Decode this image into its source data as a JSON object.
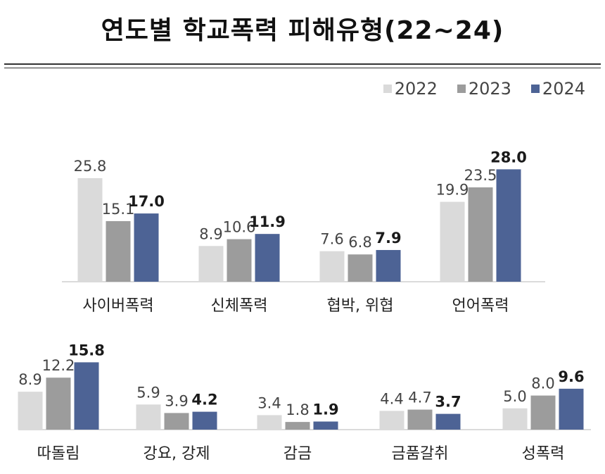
{
  "title": "연도별 학교폭력 피해유형(22~24)",
  "legend": [
    {
      "label": "2022",
      "color": "#dadada"
    },
    {
      "label": "2023",
      "color": "#9c9c9c"
    },
    {
      "label": "2024",
      "color": "#4d6395"
    }
  ],
  "chart_data": {
    "type": "bar",
    "title": "연도별 학교폭력 피해유형(22~24)",
    "unit": "",
    "legend_position": "top-right",
    "grid": false,
    "series_names": [
      "2022",
      "2023",
      "2024"
    ],
    "series_colors": [
      "#dadada",
      "#9c9c9c",
      "#4d6395"
    ],
    "categories": [
      "사이버폭력",
      "신체폭력",
      "협박, 위협",
      "언어폭력",
      "따돌림",
      "강요, 강제",
      "감금",
      "금품갈취",
      "성폭력"
    ],
    "series": [
      {
        "name": "2022",
        "values": [
          25.8,
          8.9,
          7.6,
          19.9,
          8.9,
          5.9,
          3.4,
          4.4,
          5.0
        ]
      },
      {
        "name": "2023",
        "values": [
          15.1,
          10.6,
          6.8,
          23.5,
          12.2,
          3.9,
          1.8,
          4.7,
          8.0
        ]
      },
      {
        "name": "2024",
        "values": [
          17.0,
          11.9,
          7.9,
          28.0,
          15.8,
          4.2,
          1.9,
          3.7,
          9.6
        ]
      }
    ],
    "value_labels": {
      "2022": [
        "25.8",
        "8.9",
        "7.6",
        "19.9",
        "8.9",
        "5.9",
        "3.4",
        "4.4",
        "5.0"
      ],
      "2023": [
        "15.1",
        "10.6",
        "6.8",
        "23.5",
        "12.2",
        "3.9",
        "1.8",
        "4.7",
        "8.0"
      ],
      "2024": [
        "17.0",
        "11.9",
        "7.9",
        "28.0",
        "15.8",
        "4.2",
        "1.9",
        "3.7",
        "9.6"
      ]
    }
  }
}
